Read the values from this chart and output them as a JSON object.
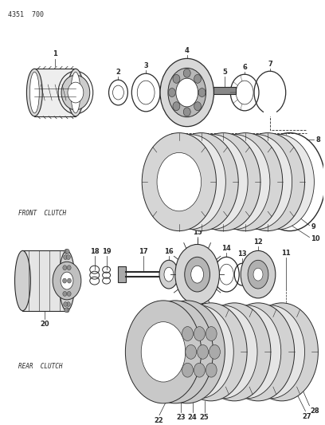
{
  "title_text": "4351  700",
  "background_color": "#ffffff",
  "line_color": "#2a2a2a",
  "front_clutch_label": "FRONT  CLUTCH",
  "rear_clutch_label": "REAR  CLUTCH",
  "fig_width": 4.08,
  "fig_height": 5.33,
  "dpi": 100
}
